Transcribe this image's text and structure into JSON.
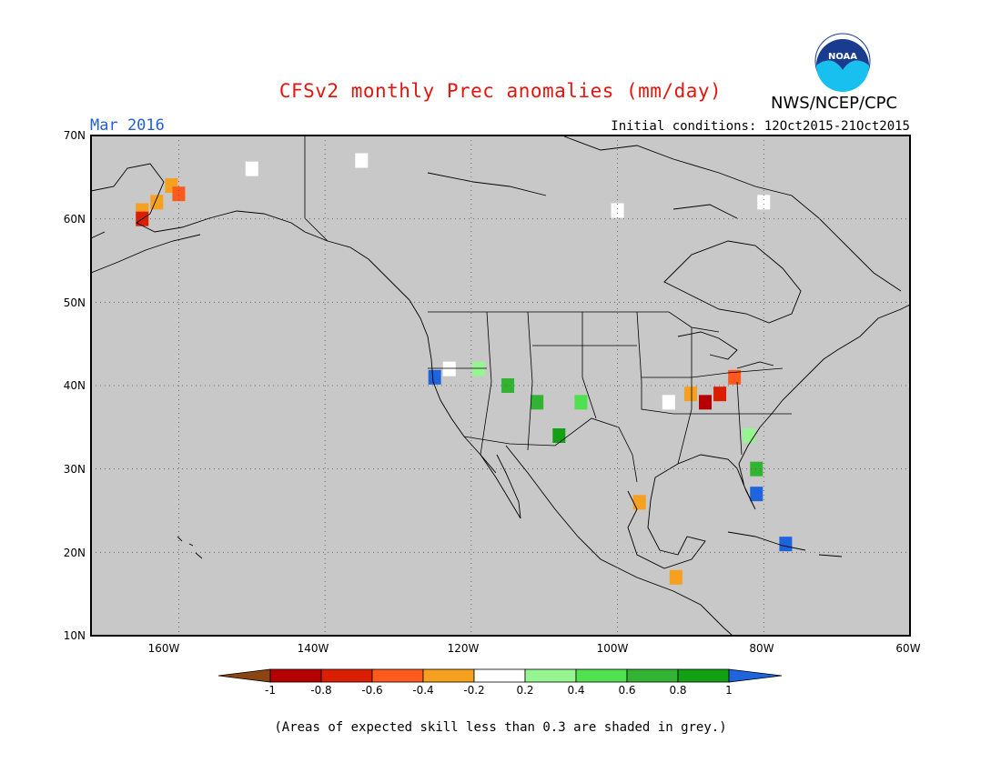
{
  "title": "CFSv2 monthly Prec anomalies (mm/day)",
  "agency": "NWS/NCEP/CPC",
  "logo_text": "NOAA",
  "forecast_month": "Mar 2016",
  "initial_conditions": "Initial conditions: 12Oct2015-21Oct2015",
  "footnote": "(Areas of expected skill less than 0.3 are shaded in grey.)",
  "map": {
    "lon_range": [
      -172,
      -60
    ],
    "lat_range": [
      10,
      70
    ],
    "lat_labels": [
      "10N",
      "20N",
      "30N",
      "40N",
      "50N",
      "60N",
      "70N"
    ],
    "lon_labels": [
      "160W",
      "140W",
      "120W",
      "100W",
      "80W",
      "60W"
    ],
    "background_grey": "#c8c8c8"
  },
  "colorbar": {
    "tick_labels": [
      "-1",
      "-0.8",
      "-0.6",
      "-0.4",
      "-0.2",
      "0.2",
      "0.4",
      "0.6",
      "0.8",
      "1"
    ],
    "colors": [
      "#8b4513",
      "#b40000",
      "#dc1e00",
      "#ff5a1e",
      "#f5a01e",
      "#ffffff",
      "#96f591",
      "#50e150",
      "#32b432",
      "#14a014",
      "#1e64dc"
    ]
  },
  "anomaly_patches": [
    {
      "lon": -163,
      "lat": 62,
      "color": "#f5a01e"
    },
    {
      "lon": -161,
      "lat": 64,
      "color": "#f5a01e"
    },
    {
      "lon": -165,
      "lat": 61,
      "color": "#f5a01e"
    },
    {
      "lon": -160,
      "lat": 63,
      "color": "#ff5a1e"
    },
    {
      "lon": -165,
      "lat": 60,
      "color": "#dc1e00"
    },
    {
      "lon": -88,
      "lat": 38,
      "color": "#b40000"
    },
    {
      "lon": -86,
      "lat": 39,
      "color": "#dc1e00"
    },
    {
      "lon": -84,
      "lat": 41,
      "color": "#ff5a1e"
    },
    {
      "lon": -90,
      "lat": 39,
      "color": "#f5a01e"
    },
    {
      "lon": -93,
      "lat": 38,
      "color": "#ffffff"
    },
    {
      "lon": -115,
      "lat": 40,
      "color": "#32b432"
    },
    {
      "lon": -111,
      "lat": 38,
      "color": "#32b432"
    },
    {
      "lon": -108,
      "lat": 34,
      "color": "#14a014"
    },
    {
      "lon": -105,
      "lat": 38,
      "color": "#50e150"
    },
    {
      "lon": -119,
      "lat": 42,
      "color": "#96f591"
    },
    {
      "lon": -123,
      "lat": 42,
      "color": "#ffffff"
    },
    {
      "lon": -125,
      "lat": 41,
      "color": "#1e64dc"
    },
    {
      "lon": -81,
      "lat": 30,
      "color": "#32b432"
    },
    {
      "lon": -81,
      "lat": 27,
      "color": "#1e64dc"
    },
    {
      "lon": -82,
      "lat": 34,
      "color": "#96f591"
    },
    {
      "lon": -77,
      "lat": 21,
      "color": "#1e64dc"
    },
    {
      "lon": -97,
      "lat": 26,
      "color": "#f5a01e"
    },
    {
      "lon": -92,
      "lat": 17,
      "color": "#f5a01e"
    },
    {
      "lon": -80,
      "lat": 62,
      "color": "#ffffff"
    },
    {
      "lon": -100,
      "lat": 61,
      "color": "#ffffff"
    },
    {
      "lon": -135,
      "lat": 67,
      "color": "#ffffff"
    },
    {
      "lon": -150,
      "lat": 66,
      "color": "#ffffff"
    }
  ]
}
